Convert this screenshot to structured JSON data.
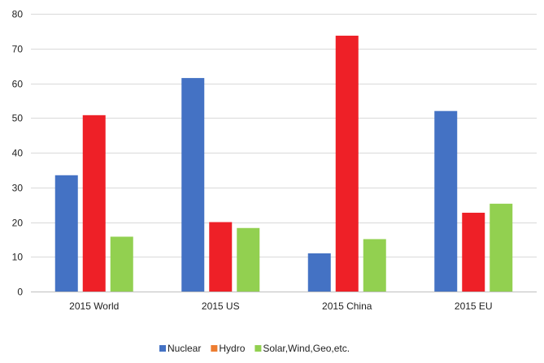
{
  "chart_data": {
    "type": "bar",
    "categories": [
      "2015 World",
      "2015 US",
      "2015 China",
      "2015 EU"
    ],
    "series": [
      {
        "name": "Nuclear",
        "color": "#4472C4",
        "values": [
          33.5,
          61.5,
          11,
          52
        ]
      },
      {
        "name": "Hydro",
        "color": "#EE2027",
        "legend_color": "#ED7D31",
        "values": [
          50.8,
          20,
          73.7,
          22.7
        ]
      },
      {
        "name": "Solar,Wind,Geo,etc.",
        "color": "#92D050",
        "values": [
          15.8,
          18.3,
          15.1,
          25.3
        ]
      }
    ],
    "ylim": [
      0,
      80
    ],
    "yticks": [
      0,
      10,
      20,
      30,
      40,
      50,
      60,
      70,
      80
    ],
    "grid": true,
    "legend_position": "bottom",
    "title": "",
    "xlabel": "",
    "ylabel": ""
  }
}
